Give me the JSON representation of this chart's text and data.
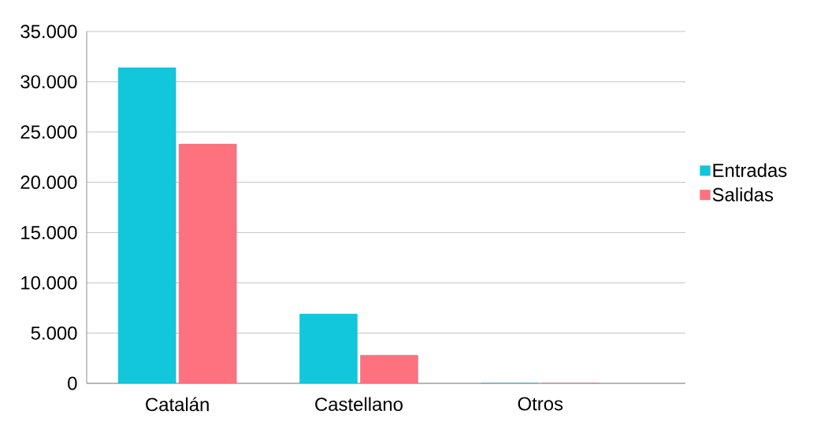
{
  "chart_data": {
    "type": "bar",
    "categories": [
      "Catalán",
      "Castellano",
      "Otros"
    ],
    "series": [
      {
        "name": "Entradas",
        "color": "#12c7dc",
        "values": [
          31400,
          6900,
          0
        ]
      },
      {
        "name": "Salidas",
        "color": "#fe717f",
        "values": [
          23800,
          2800,
          0
        ]
      }
    ],
    "ylim": [
      0,
      35000
    ],
    "yticks": [
      0,
      {
        "value": 5000,
        "label": "5.000"
      },
      {
        "value": 10000,
        "label": "10.000"
      },
      {
        "value": 15000,
        "label": "15.000"
      },
      {
        "value": 20000,
        "label": "20.000"
      },
      {
        "value": 25000,
        "label": "25.000"
      },
      {
        "value": 30000,
        "label": "30.000"
      },
      {
        "value": 35000,
        "label": "35.000"
      }
    ],
    "grid": "y",
    "legend": "right"
  }
}
